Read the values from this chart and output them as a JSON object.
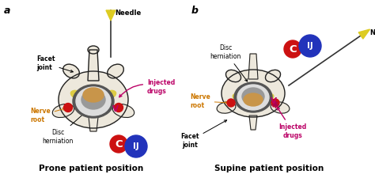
{
  "bg_color": "#ffffff",
  "panel_a_title": "a",
  "panel_b_title": "b",
  "caption_a": "Prone patient position",
  "caption_b": "Supine patient position",
  "needle_label": "Needle",
  "injected_drugs_color": "#bb0066",
  "nerve_root_color": "#cc7700",
  "vertebra_fill": "#ede8dc",
  "vertebra_outline": "#222222",
  "disc_fill": "#c8954a",
  "canal_fill": "#888888",
  "cord_fill": "#bbbbbb",
  "red_dot_color": "#cc1111",
  "C_circle_color": "#cc1111",
  "IJ_circle_color": "#2233bb",
  "needle_color": "#ddcc22",
  "needle_line_color": "#333333",
  "skin_color": "#c8904a",
  "yellow_highlight": "#ddcc44",
  "panel_label_fontsize": 9,
  "label_fontsize": 5.5,
  "caption_fontsize": 7.5
}
